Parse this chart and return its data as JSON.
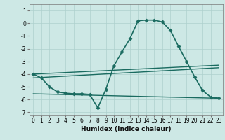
{
  "title": "",
  "xlabel": "Humidex (Indice chaleur)",
  "ylabel": "",
  "background_color": "#cde8e5",
  "grid_color": "#aed0cd",
  "line_color": "#1a6b60",
  "xlim": [
    -0.5,
    23.5
  ],
  "ylim": [
    -7.2,
    1.5
  ],
  "yticks": [
    1,
    0,
    -1,
    -2,
    -3,
    -4,
    -5,
    -6,
    -7
  ],
  "xticks": [
    0,
    1,
    2,
    3,
    4,
    5,
    6,
    7,
    8,
    9,
    10,
    11,
    12,
    13,
    14,
    15,
    16,
    17,
    18,
    19,
    20,
    21,
    22,
    23
  ],
  "series": [
    {
      "x": [
        0,
        1,
        2,
        3,
        4,
        5,
        6,
        7,
        8,
        9,
        10,
        11,
        12,
        13,
        14,
        15,
        16,
        17,
        18,
        19,
        20,
        21,
        22,
        23
      ],
      "y": [
        -4.0,
        -4.3,
        -5.0,
        -5.4,
        -5.5,
        -5.55,
        -5.55,
        -5.6,
        -6.65,
        -5.2,
        -3.35,
        -2.25,
        -1.2,
        0.2,
        0.25,
        0.25,
        0.1,
        -0.55,
        -1.8,
        -3.0,
        -4.2,
        -5.3,
        -5.8,
        -5.9
      ],
      "marker": "D",
      "markersize": 2.5,
      "linewidth": 1.2
    },
    {
      "x": [
        0,
        23
      ],
      "y": [
        -4.0,
        -3.3
      ],
      "marker": null,
      "linewidth": 1.0
    },
    {
      "x": [
        0,
        23
      ],
      "y": [
        -4.3,
        -3.5
      ],
      "marker": null,
      "linewidth": 1.0
    },
    {
      "x": [
        0,
        23
      ],
      "y": [
        -5.55,
        -5.9
      ],
      "marker": null,
      "linewidth": 1.0
    }
  ],
  "tick_fontsize": 5.5,
  "xlabel_fontsize": 6.5,
  "xlabel_fontweight": "bold"
}
